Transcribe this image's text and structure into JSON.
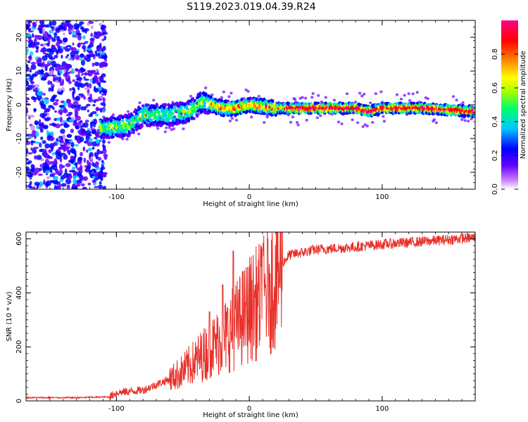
{
  "title": "S119.2023.019.04.39.R24",
  "chart_data": [
    {
      "type": "heatmap",
      "xlabel": "Height of straight line (km)",
      "ylabel": "Frequency (Hz)",
      "xlim": [
        -168,
        170
      ],
      "ylim": [
        -25,
        25
      ],
      "x_ticks": [
        -100,
        0,
        100
      ],
      "y_ticks": [
        -20,
        -10,
        0,
        10,
        20
      ],
      "colorbar": {
        "label": "Normalized spectral amplitude",
        "range": [
          0,
          1
        ],
        "ticks": [
          "0.0",
          "0.2",
          "0.4",
          "0.6",
          "0.8"
        ],
        "colors": [
          "#ffffff",
          "#cc88ff",
          "#6600ff",
          "#0000ff",
          "#00c8ff",
          "#00ff66",
          "#aaff00",
          "#ffff00",
          "#ff8800",
          "#ff0000",
          "#ff0088"
        ]
      },
      "ridge_center_hz": [
        {
          "x": -110,
          "y": -7
        },
        {
          "x": -90,
          "y": -6
        },
        {
          "x": -80,
          "y": -3
        },
        {
          "x": -60,
          "y": -3
        },
        {
          "x": -45,
          "y": -2
        },
        {
          "x": -35,
          "y": 1
        },
        {
          "x": -20,
          "y": -1
        },
        {
          "x": -10,
          "y": -1
        },
        {
          "x": 0,
          "y": 0
        },
        {
          "x": 20,
          "y": -1
        },
        {
          "x": 80,
          "y": -1
        },
        {
          "x": 90,
          "y": -2
        },
        {
          "x": 100,
          "y": -1
        },
        {
          "x": 130,
          "y": -1
        },
        {
          "x": 170,
          "y": -2
        }
      ]
    },
    {
      "type": "line",
      "xlabel": "Height of straight line (km)",
      "ylabel": "SNR (10 * v/v)",
      "xlim": [
        -168,
        170
      ],
      "ylim": [
        0,
        625
      ],
      "x_ticks": [
        -100,
        0,
        100
      ],
      "y_ticks": [
        0,
        200,
        400,
        600
      ],
      "series": [
        {
          "color": "#e8302a",
          "trend": [
            {
              "x": -168,
              "y": 12
            },
            {
              "x": -130,
              "y": 12
            },
            {
              "x": -105,
              "y": 15
            },
            {
              "x": -100,
              "y": 30
            },
            {
              "x": -80,
              "y": 40
            },
            {
              "x": -60,
              "y": 80
            },
            {
              "x": -50,
              "y": 110
            },
            {
              "x": -40,
              "y": 150
            },
            {
              "x": -30,
              "y": 190
            },
            {
              "x": -20,
              "y": 230
            },
            {
              "x": -10,
              "y": 280
            },
            {
              "x": 0,
              "y": 340
            },
            {
              "x": 10,
              "y": 380
            },
            {
              "x": 20,
              "y": 450
            },
            {
              "x": 25,
              "y": 510
            },
            {
              "x": 30,
              "y": 540
            },
            {
              "x": 50,
              "y": 560
            },
            {
              "x": 80,
              "y": 570
            },
            {
              "x": 100,
              "y": 580
            },
            {
              "x": 130,
              "y": 590
            },
            {
              "x": 170,
              "y": 605
            }
          ],
          "peaks": [
            {
              "x": -12,
              "y": 555
            },
            {
              "x": 10,
              "y": 560
            },
            {
              "x": -5,
              "y": 480
            },
            {
              "x": 15,
              "y": 470
            },
            {
              "x": -20,
              "y": 430
            },
            {
              "x": -30,
              "y": 330
            }
          ]
        }
      ]
    }
  ]
}
